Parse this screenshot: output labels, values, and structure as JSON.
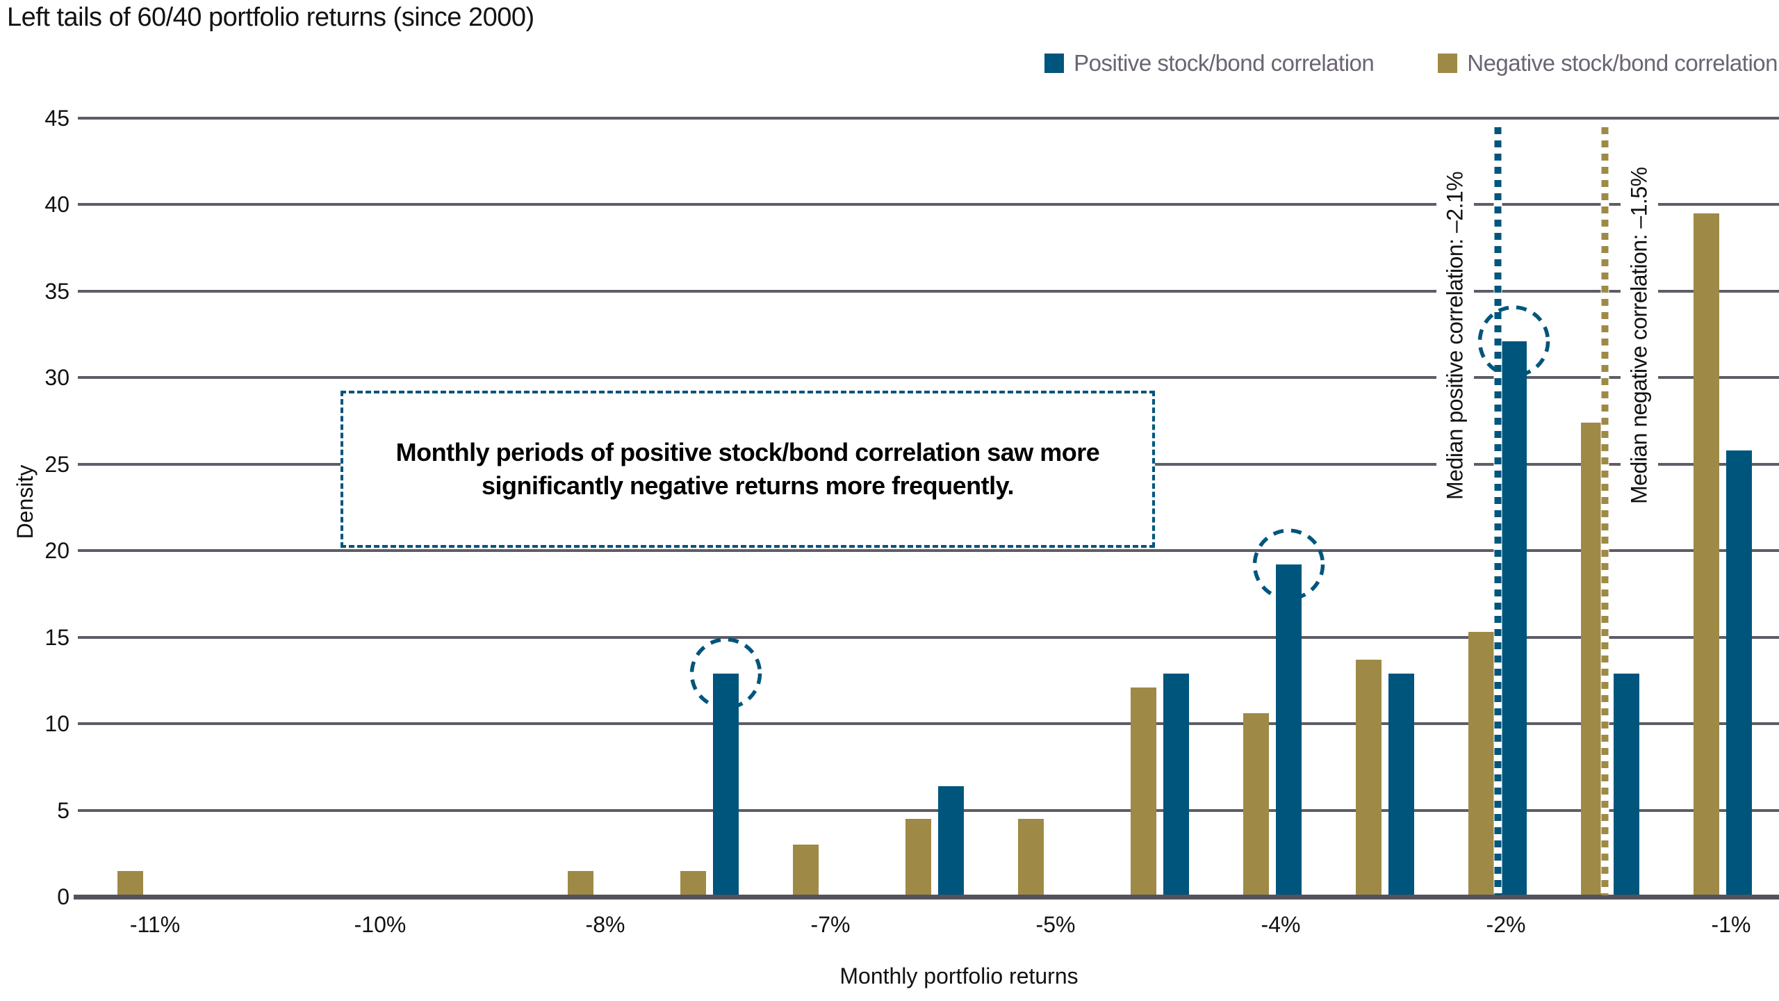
{
  "title": "Left tails of 60/40 portfolio returns (since 2000)",
  "legend": {
    "items": [
      {
        "role": "positive",
        "label": "Positive stock/bond correlation",
        "color": "#00557C"
      },
      {
        "role": "negative",
        "label": "Negative stock/bond correlation",
        "color": "#9E8A46"
      }
    ]
  },
  "annotation_box": {
    "line1": "Monthly periods of positive stock/bond correlation saw more",
    "line2": "significantly negative returns more frequently."
  },
  "chart_data": {
    "type": "bar",
    "title": "Left tails of 60/40 portfolio returns (since 2000)",
    "xlabel": "Monthly portfolio returns",
    "ylabel": "Density",
    "ylim": [
      0,
      45
    ],
    "ytick_step": 5,
    "yticks": [
      0,
      5,
      10,
      15,
      20,
      25,
      30,
      35,
      40,
      45
    ],
    "grid": true,
    "legend_position": "top-right",
    "categories": [
      "-11%",
      "",
      "-10%",
      "",
      "-8%",
      "",
      "-7%",
      "",
      "-5%",
      "",
      "-4%",
      "",
      "-2%",
      "",
      "-1%"
    ],
    "series": [
      {
        "name": "Negative stock/bond correlation",
        "role": "negative",
        "color": "#9E8A46",
        "values": [
          1.5,
          null,
          null,
          null,
          1.5,
          1.5,
          3.0,
          4.5,
          4.5,
          12.1,
          10.6,
          13.7,
          15.3,
          27.4,
          39.5
        ]
      },
      {
        "name": "Positive stock/bond correlation",
        "role": "positive",
        "color": "#00557C",
        "values": [
          null,
          null,
          null,
          null,
          null,
          12.9,
          null,
          6.4,
          null,
          12.9,
          19.2,
          12.9,
          32.1,
          12.9,
          25.8
        ]
      }
    ],
    "circled_bins": [
      6,
      11,
      13
    ],
    "median_lines": [
      {
        "series": "positive",
        "bin": 13,
        "color": "#00557C",
        "label": "Median positive correlation: –2.1%",
        "value_label": "–2.1%",
        "label_side": "left"
      },
      {
        "series": "negative",
        "bin": 14,
        "color": "#9E8A46",
        "label": "Median negative correlation: –1.5%",
        "value_label": "–1.5%",
        "label_side": "right"
      }
    ]
  },
  "colors": {
    "background": "#FFFFFF",
    "gridline": "#5E5C66",
    "axis_line": "#54525C",
    "text": "#121212",
    "legend_text": "#6B6472",
    "positive": "#00557C",
    "negative": "#9E8A46",
    "annotation_border": "#00557D"
  }
}
